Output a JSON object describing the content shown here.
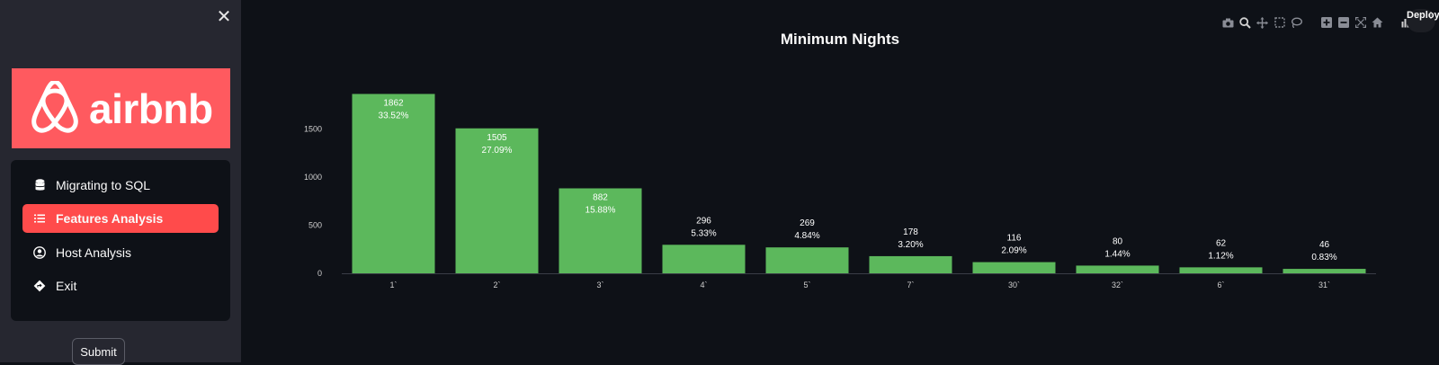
{
  "sidebar": {
    "close_symbol": "✕",
    "logo_text": "airbnb",
    "menu": [
      {
        "label": "Migrating to SQL",
        "icon": "database-icon",
        "active": false
      },
      {
        "label": "Features Analysis",
        "icon": "list-icon",
        "active": true
      },
      {
        "label": "Host Analysis",
        "icon": "user-circle-icon",
        "active": false
      },
      {
        "label": "Exit",
        "icon": "diamond-arrow-icon",
        "active": false
      }
    ],
    "submit_label": "Submit"
  },
  "header": {
    "deploy_label": "Deploy"
  },
  "modebar": [
    "camera-icon",
    "zoom-icon",
    "pan-icon",
    "box-select-icon",
    "lasso-select-icon",
    "zoom-in-icon",
    "zoom-out-icon",
    "autoscale-icon",
    "reset-axes-icon",
    "plotly-logo-icon"
  ],
  "colors": {
    "bar": "#5cb85c",
    "accent": "#ff4b4b",
    "logo_bg": "#ff5a5f",
    "background": "#0e1117",
    "sidebar": "#262730"
  },
  "chart_data": {
    "type": "bar",
    "title": "Minimum Nights",
    "xlabel": "",
    "ylabel": "",
    "categories": [
      "1`",
      "2`",
      "3`",
      "4`",
      "5`",
      "7`",
      "30`",
      "32`",
      "6`",
      "31`"
    ],
    "values": [
      1862,
      1505,
      882,
      296,
      269,
      178,
      116,
      80,
      62,
      46
    ],
    "percents": [
      "33.52%",
      "27.09%",
      "15.88%",
      "5.33%",
      "4.84%",
      "3.20%",
      "2.09%",
      "1.44%",
      "1.12%",
      "0.83%"
    ],
    "yticks": [
      0,
      500,
      1000,
      1500
    ],
    "ylim": [
      0,
      1960
    ],
    "grid": false
  }
}
